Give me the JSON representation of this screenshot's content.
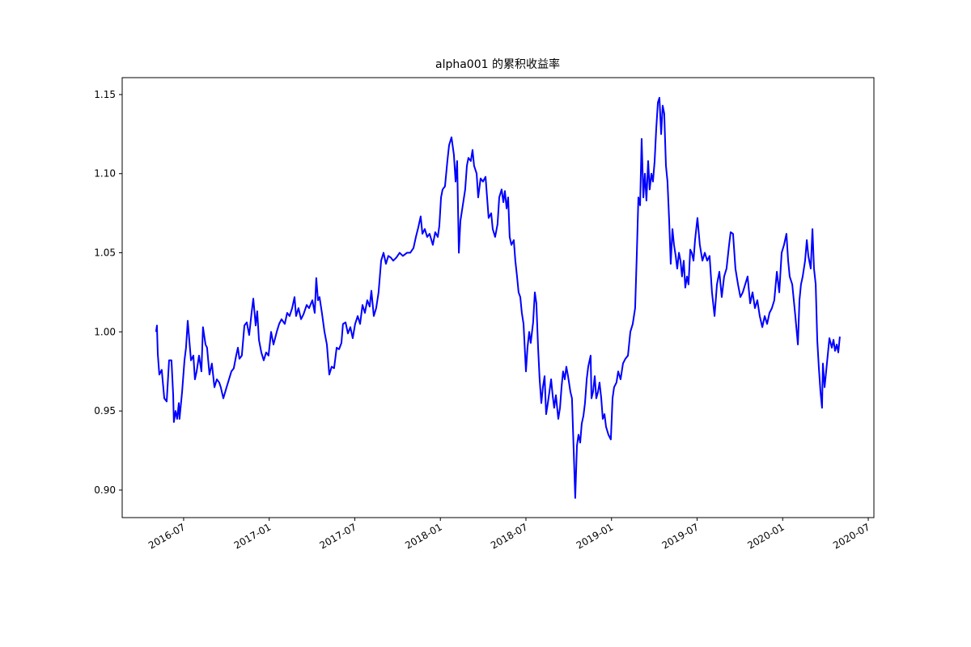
{
  "chart_data": {
    "type": "line",
    "title": "alpha001 的累积收益率",
    "color": "#0000ff",
    "xlim": [
      2016.141,
      2020.533
    ],
    "ylim": [
      0.8826,
      1.1607
    ],
    "xticks": [
      {
        "value": 2016.5,
        "label": "2016-07"
      },
      {
        "value": 2017.0,
        "label": "2017-01"
      },
      {
        "value": 2017.5,
        "label": "2017-07"
      },
      {
        "value": 2018.0,
        "label": "2018-01"
      },
      {
        "value": 2018.5,
        "label": "2018-07"
      },
      {
        "value": 2019.0,
        "label": "2019-01"
      },
      {
        "value": 2019.5,
        "label": "2019-07"
      },
      {
        "value": 2020.0,
        "label": "2020-01"
      },
      {
        "value": 2020.5,
        "label": "2020-07"
      }
    ],
    "yticks": [
      {
        "value": 0.9,
        "label": "0.90"
      },
      0.95,
      {
        "value": 1.0,
        "label": "1.00"
      },
      1.05,
      {
        "value": 1.1,
        "label": "1.10"
      },
      1.15
    ],
    "grid": false,
    "x": [
      2016.339,
      2016.344,
      2016.349,
      2016.358,
      2016.372,
      2016.387,
      2016.401,
      2016.415,
      2016.429,
      2016.439,
      2016.443,
      2016.453,
      2016.462,
      2016.472,
      2016.476,
      2016.491,
      2016.505,
      2016.514,
      2016.524,
      2016.533,
      2016.543,
      2016.557,
      2016.566,
      2016.576,
      2016.59,
      2016.604,
      2016.613,
      2016.628,
      2016.637,
      2016.651,
      2016.665,
      2016.68,
      2016.694,
      2016.708,
      2016.717,
      2016.732,
      2016.751,
      2016.765,
      2016.779,
      2016.793,
      2016.807,
      2016.817,
      2016.826,
      2016.84,
      2016.855,
      2016.869,
      2016.883,
      2016.897,
      2016.907,
      2016.921,
      2016.93,
      2016.94,
      2016.954,
      2016.968,
      2016.982,
      2016.996,
      2017.011,
      2017.025,
      2017.044,
      2017.058,
      2017.072,
      2017.091,
      2017.105,
      2017.119,
      2017.134,
      2017.148,
      2017.157,
      2017.171,
      2017.186,
      2017.2,
      2017.219,
      2017.233,
      2017.252,
      2017.266,
      2017.275,
      2017.285,
      2017.294,
      2017.308,
      2017.323,
      2017.337,
      2017.351,
      2017.365,
      2017.379,
      2017.394,
      2017.408,
      2017.422,
      2017.431,
      2017.446,
      2017.46,
      2017.474,
      2017.488,
      2017.502,
      2017.517,
      2017.531,
      2017.545,
      2017.559,
      2017.573,
      2017.587,
      2017.597,
      2017.611,
      2017.625,
      2017.639,
      2017.654,
      2017.668,
      2017.682,
      2017.696,
      2017.71,
      2017.725,
      2017.743,
      2017.762,
      2017.781,
      2017.805,
      2017.824,
      2017.843,
      2017.857,
      2017.871,
      2017.885,
      2017.895,
      2017.909,
      2017.923,
      2017.937,
      2017.956,
      2017.97,
      2017.985,
      2017.994,
      2018.004,
      2018.013,
      2018.027,
      2018.041,
      2018.051,
      2018.065,
      2018.079,
      2018.089,
      2018.098,
      2018.108,
      2018.117,
      2018.131,
      2018.145,
      2018.155,
      2018.164,
      2018.178,
      2018.188,
      2018.197,
      2018.212,
      2018.221,
      2018.235,
      2018.249,
      2018.264,
      2018.273,
      2018.282,
      2018.297,
      2018.306,
      2018.32,
      2018.334,
      2018.344,
      2018.358,
      2018.368,
      2018.377,
      2018.387,
      2018.396,
      2018.405,
      2018.415,
      2018.429,
      2018.438,
      2018.448,
      2018.457,
      2018.467,
      2018.476,
      2018.486,
      2018.5,
      2018.509,
      2018.519,
      2018.528,
      2018.542,
      2018.552,
      2018.561,
      2018.571,
      2018.58,
      2018.59,
      2018.599,
      2018.609,
      2018.618,
      2018.628,
      2018.637,
      2018.647,
      2018.656,
      2018.665,
      2018.675,
      2018.689,
      2018.699,
      2018.708,
      2018.717,
      2018.727,
      2018.736,
      2018.746,
      2018.76,
      2018.769,
      2018.779,
      2018.788,
      2018.798,
      2018.807,
      2018.817,
      2018.826,
      2018.836,
      2018.845,
      2018.855,
      2018.864,
      2018.878,
      2018.883,
      2018.892,
      2018.902,
      2018.911,
      2018.921,
      2018.93,
      2018.94,
      2018.949,
      2018.959,
      2018.968,
      2018.982,
      2018.996,
      2019.006,
      2019.015,
      2019.029,
      2019.039,
      2019.053,
      2019.067,
      2019.081,
      2019.096,
      2019.11,
      2019.124,
      2019.138,
      2019.148,
      2019.157,
      2019.167,
      2019.176,
      2019.186,
      2019.195,
      2019.204,
      2019.214,
      2019.223,
      2019.233,
      2019.242,
      2019.252,
      2019.261,
      2019.271,
      2019.28,
      2019.29,
      2019.299,
      2019.308,
      2019.318,
      2019.327,
      2019.337,
      2019.346,
      2019.356,
      2019.365,
      2019.375,
      2019.384,
      2019.394,
      2019.403,
      2019.412,
      2019.422,
      2019.431,
      2019.441,
      2019.45,
      2019.46,
      2019.469,
      2019.479,
      2019.488,
      2019.502,
      2019.516,
      2019.531,
      2019.545,
      2019.559,
      2019.573,
      2019.587,
      2019.602,
      2019.616,
      2019.63,
      2019.644,
      2019.658,
      2019.672,
      2019.687,
      2019.696,
      2019.71,
      2019.724,
      2019.739,
      2019.753,
      2019.767,
      2019.781,
      2019.795,
      2019.81,
      2019.824,
      2019.838,
      2019.852,
      2019.866,
      2019.881,
      2019.895,
      2019.909,
      2019.923,
      2019.937,
      2019.951,
      2019.966,
      2019.98,
      2019.994,
      2020.008,
      2020.022,
      2020.032,
      2020.041,
      2020.056,
      2020.074,
      2020.089,
      2020.098,
      2020.107,
      2020.117,
      2020.131,
      2020.141,
      2020.15,
      2020.164,
      2020.174,
      2020.183,
      2020.193,
      2020.202,
      2020.211,
      2020.221,
      2020.23,
      2020.235,
      2020.245,
      2020.254,
      2020.263,
      2020.273,
      2020.287,
      2020.297,
      2020.306,
      2020.316,
      2020.325,
      2020.334
    ],
    "values": [
      1.0,
      1.004,
      0.986,
      0.973,
      0.976,
      0.958,
      0.956,
      0.982,
      0.982,
      0.96,
      0.943,
      0.95,
      0.945,
      0.955,
      0.945,
      0.962,
      0.982,
      0.99,
      1.007,
      0.995,
      0.982,
      0.985,
      0.97,
      0.975,
      0.985,
      0.975,
      1.003,
      0.992,
      0.99,
      0.973,
      0.98,
      0.965,
      0.97,
      0.968,
      0.965,
      0.958,
      0.965,
      0.97,
      0.975,
      0.977,
      0.985,
      0.99,
      0.983,
      0.985,
      1.004,
      1.006,
      0.998,
      1.012,
      1.021,
      1.004,
      1.013,
      0.995,
      0.987,
      0.982,
      0.987,
      0.985,
      1.0,
      0.992,
      1.0,
      1.005,
      1.008,
      1.005,
      1.012,
      1.01,
      1.015,
      1.022,
      1.01,
      1.015,
      1.008,
      1.011,
      1.017,
      1.015,
      1.02,
      1.012,
      1.034,
      1.02,
      1.022,
      1.012,
      1.0,
      0.992,
      0.973,
      0.978,
      0.977,
      0.99,
      0.989,
      0.993,
      1.005,
      1.006,
      0.999,
      1.003,
      0.996,
      1.005,
      1.01,
      1.005,
      1.017,
      1.012,
      1.02,
      1.016,
      1.026,
      1.01,
      1.015,
      1.025,
      1.045,
      1.05,
      1.043,
      1.048,
      1.047,
      1.045,
      1.047,
      1.05,
      1.048,
      1.05,
      1.05,
      1.053,
      1.06,
      1.066,
      1.073,
      1.062,
      1.065,
      1.06,
      1.062,
      1.055,
      1.063,
      1.06,
      1.067,
      1.085,
      1.09,
      1.092,
      1.108,
      1.118,
      1.123,
      1.112,
      1.095,
      1.108,
      1.05,
      1.07,
      1.08,
      1.09,
      1.105,
      1.11,
      1.108,
      1.115,
      1.105,
      1.1,
      1.085,
      1.097,
      1.095,
      1.098,
      1.085,
      1.072,
      1.075,
      1.065,
      1.06,
      1.068,
      1.085,
      1.09,
      1.082,
      1.089,
      1.078,
      1.085,
      1.06,
      1.055,
      1.058,
      1.045,
      1.035,
      1.025,
      1.022,
      1.012,
      1.005,
      0.975,
      0.99,
      1.0,
      0.993,
      1.006,
      1.025,
      1.018,
      0.99,
      0.97,
      0.955,
      0.965,
      0.972,
      0.948,
      0.955,
      0.962,
      0.97,
      0.96,
      0.952,
      0.96,
      0.945,
      0.952,
      0.965,
      0.975,
      0.97,
      0.978,
      0.972,
      0.962,
      0.958,
      0.925,
      0.895,
      0.928,
      0.935,
      0.93,
      0.942,
      0.947,
      0.955,
      0.97,
      0.978,
      0.985,
      0.958,
      0.962,
      0.972,
      0.958,
      0.962,
      0.968,
      0.958,
      0.945,
      0.948,
      0.94,
      0.935,
      0.932,
      0.958,
      0.965,
      0.968,
      0.975,
      0.97,
      0.98,
      0.983,
      0.985,
      1.0,
      1.005,
      1.015,
      1.05,
      1.085,
      1.08,
      1.122,
      1.085,
      1.1,
      1.083,
      1.108,
      1.09,
      1.1,
      1.095,
      1.108,
      1.128,
      1.145,
      1.148,
      1.125,
      1.143,
      1.138,
      1.105,
      1.095,
      1.07,
      1.043,
      1.065,
      1.055,
      1.048,
      1.04,
      1.05,
      1.045,
      1.035,
      1.045,
      1.028,
      1.035,
      1.03,
      1.052,
      1.05,
      1.045,
      1.058,
      1.072,
      1.055,
      1.045,
      1.05,
      1.045,
      1.048,
      1.025,
      1.01,
      1.03,
      1.038,
      1.022,
      1.035,
      1.04,
      1.055,
      1.063,
      1.062,
      1.04,
      1.03,
      1.022,
      1.025,
      1.03,
      1.035,
      1.018,
      1.025,
      1.015,
      1.02,
      1.01,
      1.003,
      1.01,
      1.005,
      1.012,
      1.015,
      1.02,
      1.038,
      1.025,
      1.05,
      1.055,
      1.062,
      1.045,
      1.035,
      1.03,
      1.01,
      0.992,
      1.02,
      1.03,
      1.035,
      1.045,
      1.058,
      1.048,
      1.04,
      1.065,
      1.04,
      1.03,
      0.995,
      0.978,
      0.962,
      0.952,
      0.98,
      0.965,
      0.975,
      0.985,
      0.996,
      0.99,
      0.995,
      0.988,
      0.992,
      0.987,
      0.997
    ]
  }
}
